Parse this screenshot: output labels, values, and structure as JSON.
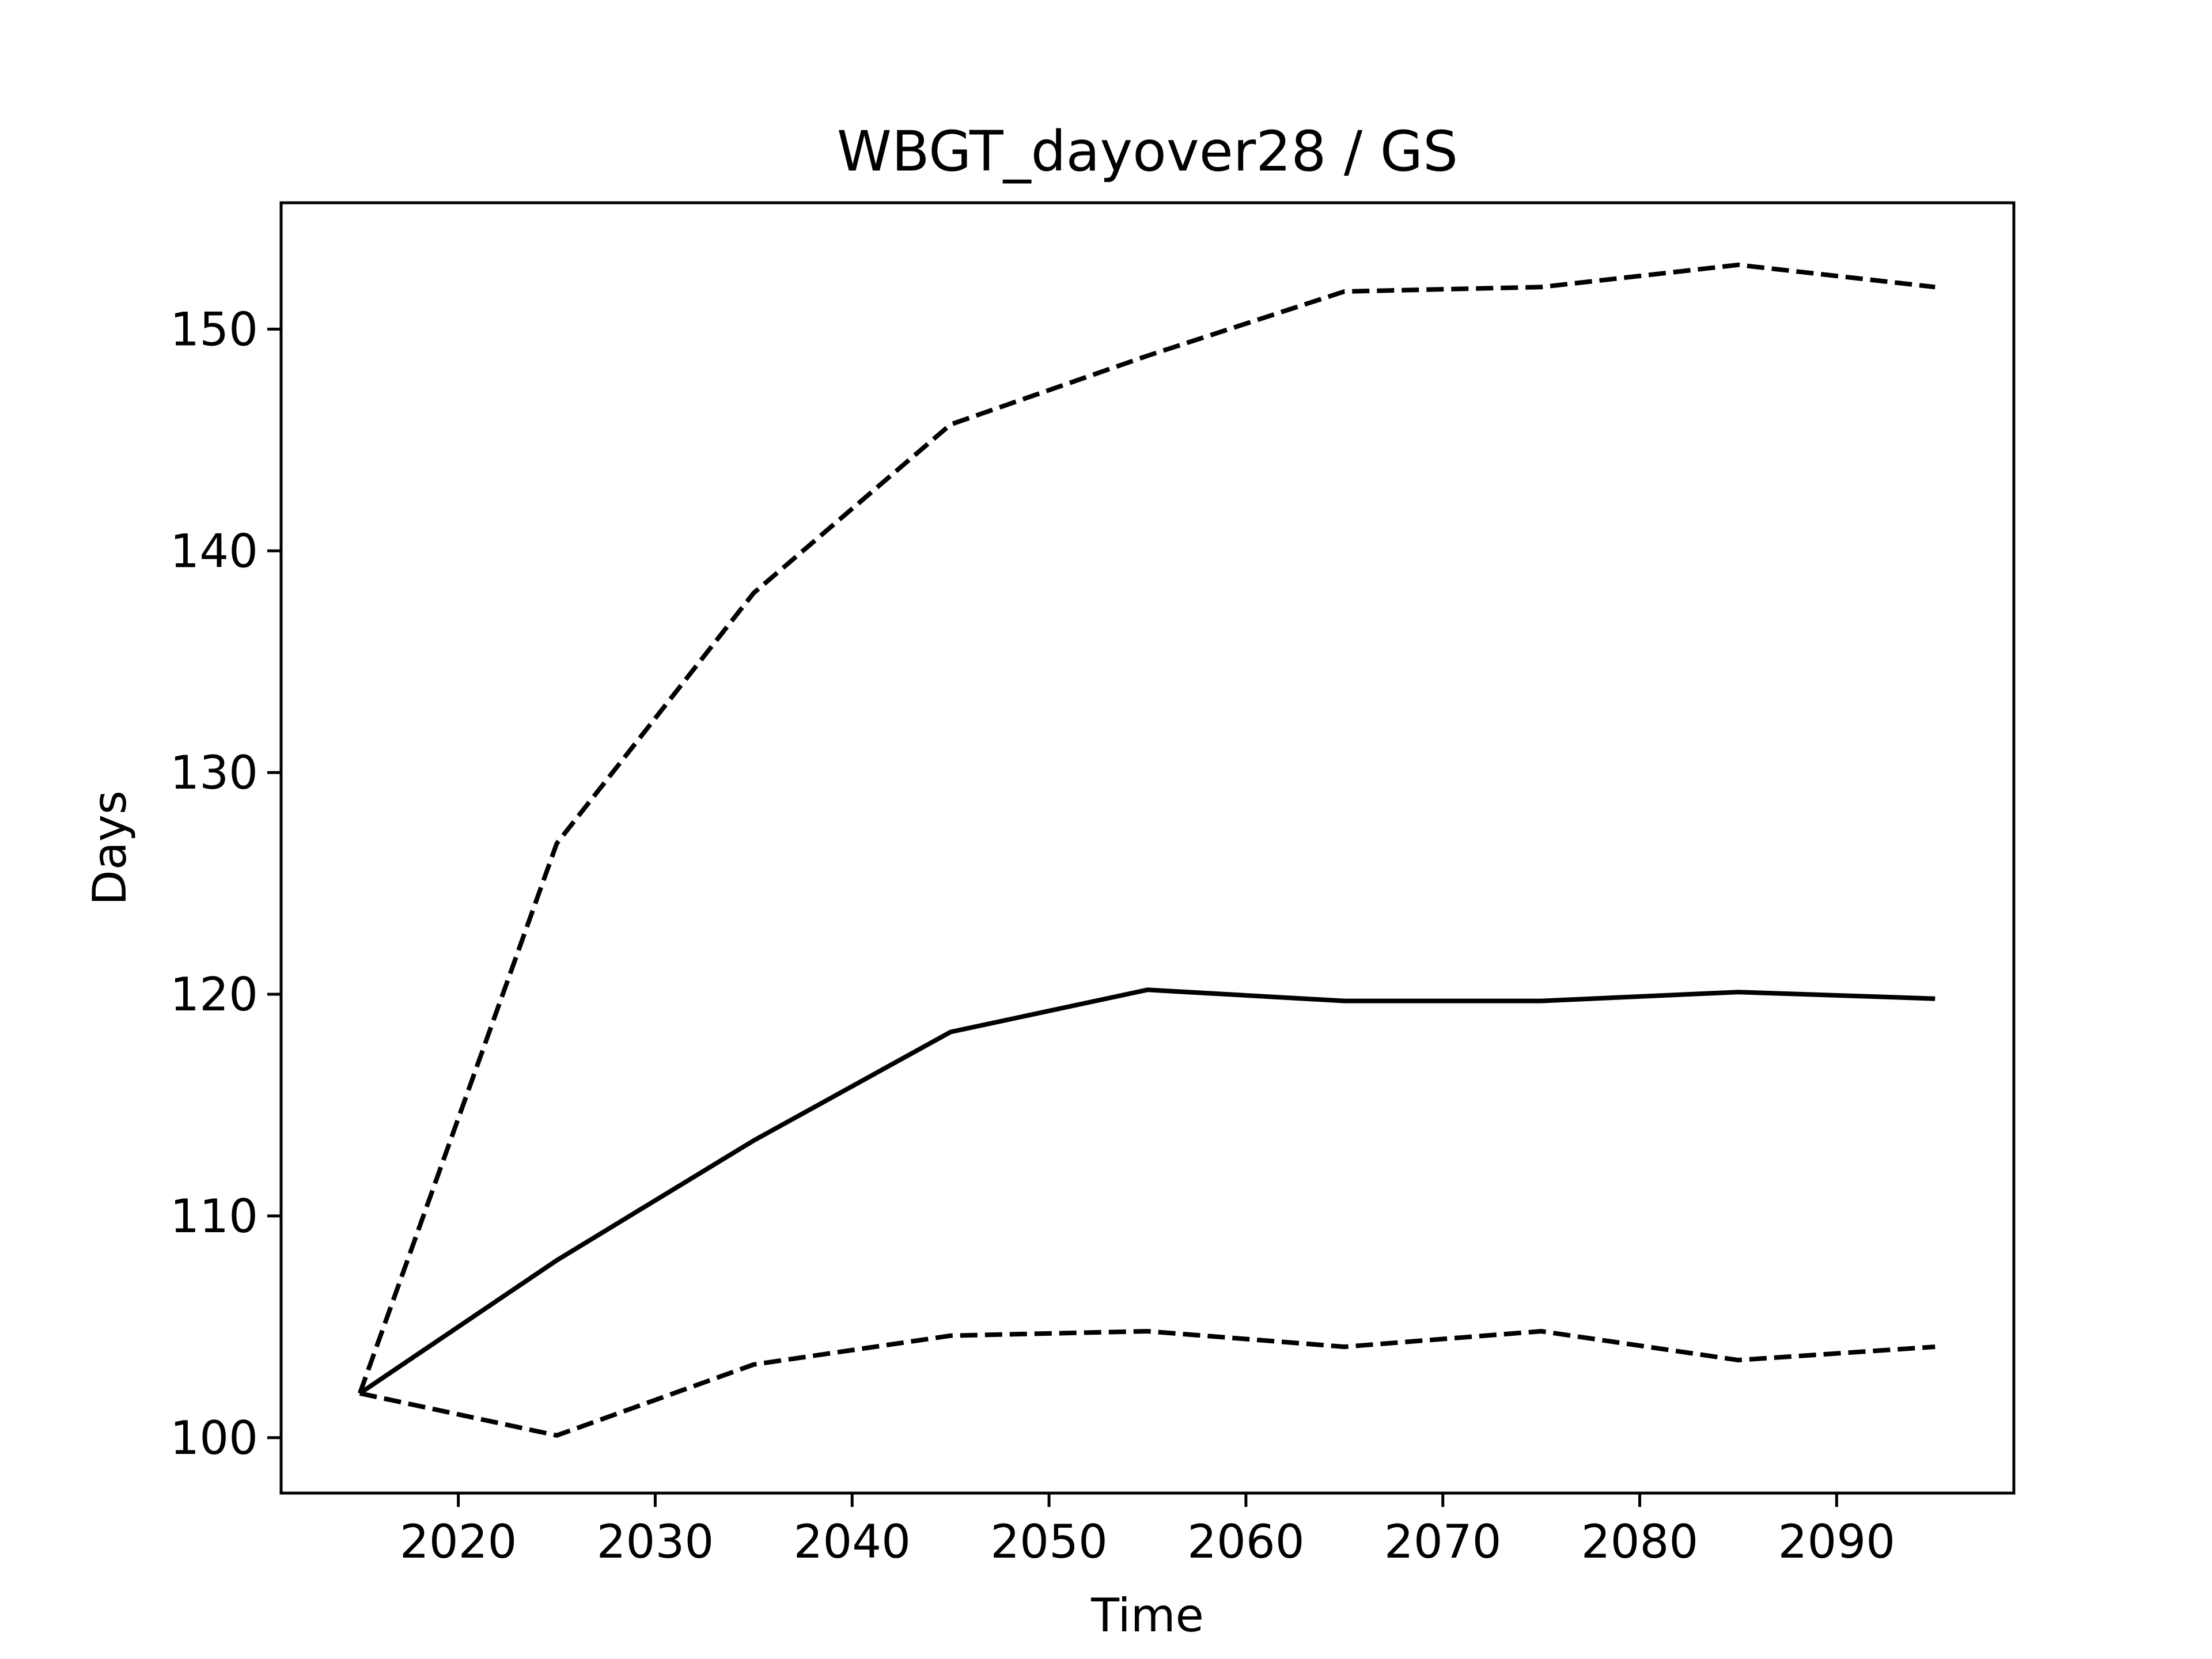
{
  "chart_data": {
    "type": "line",
    "title": "WBGT_dayover28 / GS",
    "xlabel": "Time",
    "ylabel": "Days",
    "xlim": [
      2011,
      2099
    ],
    "ylim": [
      97.5,
      155.7
    ],
    "xticks": [
      2020,
      2030,
      2040,
      2050,
      2060,
      2070,
      2080,
      2090
    ],
    "yticks": [
      100,
      110,
      120,
      130,
      140,
      150
    ],
    "grid": false,
    "x": [
      2015,
      2025,
      2035,
      2045,
      2055,
      2065,
      2075,
      2085,
      2095
    ],
    "series": [
      {
        "style": "dashed",
        "color": "#000000",
        "values": [
          102.0,
          126.8,
          138.1,
          145.7,
          148.8,
          151.7,
          151.9,
          152.9,
          151.9
        ]
      },
      {
        "style": "solid",
        "color": "#000000",
        "values": [
          102.0,
          108.0,
          113.4,
          118.3,
          120.2,
          119.7,
          119.7,
          120.1,
          119.8
        ]
      },
      {
        "style": "dashed",
        "color": "#000000",
        "values": [
          102.0,
          100.1,
          103.3,
          104.6,
          104.8,
          104.1,
          104.8,
          103.5,
          104.1
        ]
      }
    ]
  }
}
